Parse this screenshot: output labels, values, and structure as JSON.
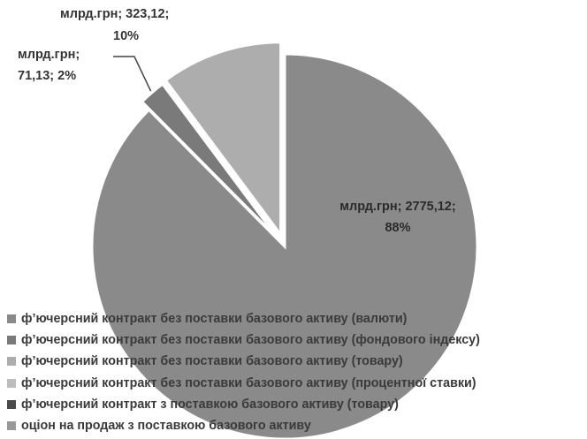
{
  "chart_data": {
    "type": "pie",
    "title": "",
    "exploded": true,
    "legend_position": "bottom-left",
    "slices": [
      {
        "name": "ф’ючерсний контракт без поставки базового активу (валюти)",
        "value": 2775.12,
        "percent": 88,
        "label_name": "млрд.грн",
        "label_value": "2775,12",
        "label_percent": "88%",
        "color": "#8a8a8a"
      },
      {
        "name": "ф’ючерсний контракт без поставки базового активу (фондового індексу)",
        "value": 71.13,
        "percent": 2,
        "label_name": "млрд.грн",
        "label_value": "71,13",
        "label_percent": "2%",
        "color": "#7a7a7a"
      },
      {
        "name": "ф’ючерсний контракт без поставки базового активу (товару)",
        "value": 323.12,
        "percent": 10,
        "label_name": "млрд.грн",
        "label_value": "323,12",
        "label_percent": "10%",
        "color": "#adadad"
      },
      {
        "name": "ф’ючерсний контракт без поставки базового активу (процентної ставки)",
        "value": 0,
        "percent": 0,
        "color": "#bdbdbd"
      },
      {
        "name": "ф’ючерсний контракт з поставкою базового активу (товару)",
        "value": 0,
        "percent": 0,
        "color": "#4a4a4a"
      },
      {
        "name": "оціон на продаж з поставкою базового активу",
        "value": 0,
        "percent": 0,
        "color": "#999999"
      }
    ]
  }
}
